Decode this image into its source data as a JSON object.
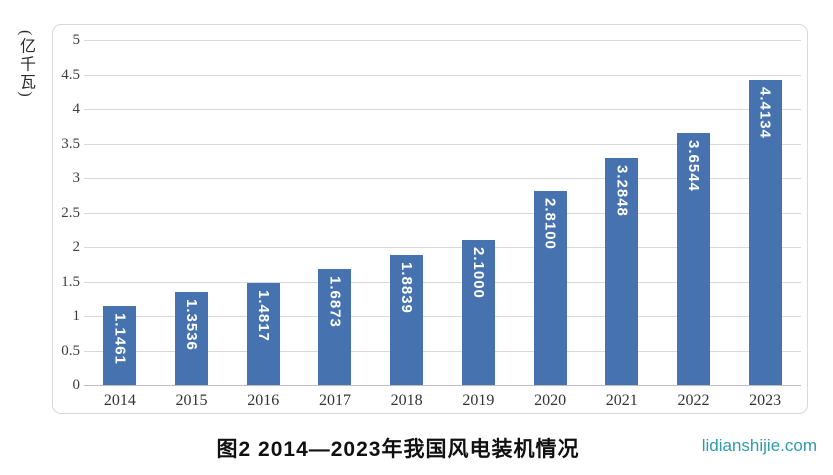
{
  "page": {
    "watermark": "lidianshijie.com",
    "watermark_color": "#2f9aac"
  },
  "chart_data": {
    "type": "bar",
    "title": "图2 2014—2023年我国风电装机情况",
    "ylabel": "(亿千瓦)",
    "categories": [
      "2014",
      "2015",
      "2016",
      "2017",
      "2018",
      "2019",
      "2020",
      "2021",
      "2022",
      "2023"
    ],
    "values": [
      1.1461,
      1.3536,
      1.4817,
      1.6873,
      1.8839,
      2.1,
      2.81,
      3.2848,
      3.6544,
      4.4134
    ],
    "value_labels": [
      "1.1461",
      "1.3536",
      "1.4817",
      "1.6873",
      "1.8839",
      "2.1000",
      "2.8100",
      "3.2848",
      "3.6544",
      "4.4134"
    ],
    "ylim": [
      0,
      5
    ],
    "ytick_step": 0.5,
    "grid": true,
    "legend": "none",
    "bar_color": "#4673af",
    "bar_label_color": "#ffffff",
    "gridline_color": "#d9d9d9",
    "axis_text_color": "#3d3d3d"
  }
}
